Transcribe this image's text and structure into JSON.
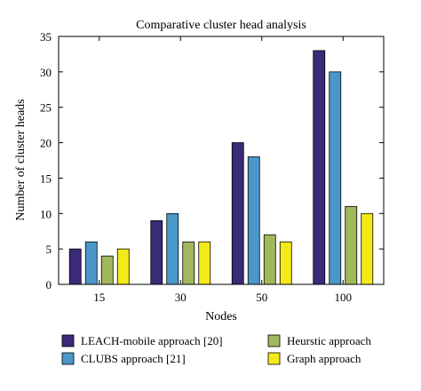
{
  "chart_data": {
    "type": "bar",
    "title": "Comparative cluster head analysis",
    "xlabel": "Nodes",
    "ylabel": "Number of cluster heads",
    "categories": [
      "15",
      "30",
      "50",
      "100"
    ],
    "ylim": [
      0,
      35
    ],
    "yticks": [
      0,
      5,
      10,
      15,
      20,
      25,
      30,
      35
    ],
    "grid": false,
    "legend_position": "bottom",
    "series": [
      {
        "name": "LEACH-mobile approach [20]",
        "color": "#3a2a78",
        "values": [
          5,
          9,
          20,
          33
        ]
      },
      {
        "name": "CLUBS approach [21]",
        "color": "#4a97c9",
        "values": [
          6,
          10,
          18,
          30
        ]
      },
      {
        "name": "Heurstic approach",
        "color": "#a2b85c",
        "values": [
          4,
          6,
          7,
          11
        ]
      },
      {
        "name": "Graph approach",
        "color": "#f4ea1a",
        "values": [
          5,
          6,
          6,
          10
        ]
      }
    ]
  }
}
